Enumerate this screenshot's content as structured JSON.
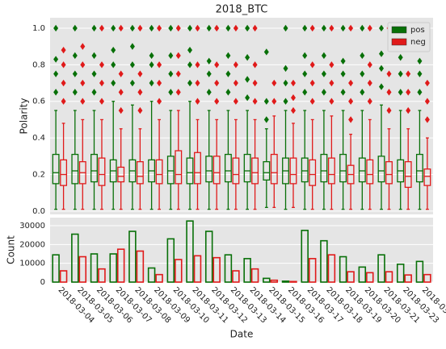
{
  "chart_data": [
    {
      "type": "box",
      "title": "2018_BTC",
      "y_label": "Polarity",
      "ylim": [
        -0.018,
        1.057
      ],
      "yticks": [
        {
          "value": 0,
          "label": "0.0"
        },
        0.2,
        0.4,
        0.6,
        0.8,
        {
          "value": 1,
          "label": "1.0"
        }
      ],
      "grid": true,
      "legend": "upper right",
      "series": [
        {
          "name": "pos",
          "color": "#087008",
          "whislo": [
            0.01,
            0.01,
            0.01,
            0.01,
            0.01,
            0.01,
            0.01,
            0.01,
            0.01,
            0.01,
            0.01,
            0.02,
            0.01,
            0.01,
            0.01,
            0.01,
            0.01,
            0.01,
            0.01,
            0.01
          ],
          "q1": [
            0.15,
            0.15,
            0.16,
            0.16,
            0.16,
            0.16,
            0.15,
            0.15,
            0.16,
            0.16,
            0.16,
            0.17,
            0.15,
            0.16,
            0.16,
            0.16,
            0.16,
            0.16,
            0.16,
            0.16
          ],
          "med": [
            0.21,
            0.22,
            0.22,
            0.22,
            0.22,
            0.22,
            0.22,
            0.21,
            0.22,
            0.22,
            0.22,
            0.21,
            0.22,
            0.22,
            0.22,
            0.22,
            0.22,
            0.22,
            0.22,
            0.22
          ],
          "q3": [
            0.31,
            0.31,
            0.31,
            0.28,
            0.28,
            0.28,
            0.3,
            0.29,
            0.3,
            0.31,
            0.31,
            0.27,
            0.29,
            0.29,
            0.31,
            0.31,
            0.29,
            0.3,
            0.28,
            0.31
          ],
          "whishi": [
            0.55,
            0.55,
            0.55,
            0.6,
            0.58,
            0.6,
            0.55,
            0.6,
            0.55,
            0.55,
            0.55,
            0.45,
            0.55,
            0.55,
            0.55,
            0.55,
            0.55,
            0.58,
            0.55,
            0.55
          ],
          "fliers": [
            [
              0.65,
              0.75,
              0.83,
              1
            ],
            [
              0.65,
              0.75,
              0.85,
              1
            ],
            [
              0.65,
              0.75,
              0.85,
              1
            ],
            [
              0.7,
              0.8,
              0.88,
              1
            ],
            [
              0.7,
              0.8,
              0.9,
              1
            ],
            [
              0.7,
              0.8,
              0.85,
              1
            ],
            [
              0.65,
              0.75,
              0.85,
              1
            ],
            [
              0.7,
              0.8,
              0.88,
              1
            ],
            [
              0.65,
              0.75,
              0.82,
              1
            ],
            [
              0.65,
              0.75,
              0.85,
              1
            ],
            [
              0.62,
              0.72,
              0.84,
              1
            ],
            [
              0.5,
              0.6,
              0.87
            ],
            [
              0.6,
              0.7,
              0.78,
              1
            ],
            [
              0.65,
              0.75,
              0.85,
              1
            ],
            [
              0.65,
              0.75,
              0.85,
              1
            ],
            [
              0.65,
              0.75,
              0.82,
              1
            ],
            [
              0.65,
              0.75,
              0.85,
              1
            ],
            [
              0.68,
              0.78,
              0.86,
              1
            ],
            [
              0.65,
              0.75,
              0.84,
              1
            ],
            [
              0.65,
              0.75,
              0.82,
              1
            ]
          ]
        },
        {
          "name": "neg",
          "color": "#e01a1a",
          "whislo": [
            0.01,
            0.01,
            0.01,
            0.01,
            0.01,
            0.01,
            0.01,
            0.01,
            0.01,
            0.01,
            0.01,
            0.02,
            0.02,
            0.01,
            0.01,
            0.01,
            0.01,
            0.01,
            0.01,
            0.01
          ],
          "q1": [
            0.14,
            0.15,
            0.14,
            0.16,
            0.15,
            0.15,
            0.15,
            0.15,
            0.15,
            0.15,
            0.15,
            0.15,
            0.15,
            0.14,
            0.15,
            0.15,
            0.15,
            0.15,
            0.13,
            0.14
          ],
          "med": [
            0.2,
            0.21,
            0.2,
            0.19,
            0.19,
            0.2,
            0.2,
            0.21,
            0.21,
            0.2,
            0.21,
            0.21,
            0.2,
            0.2,
            0.2,
            0.2,
            0.2,
            0.2,
            0.19,
            0.19
          ],
          "q3": [
            0.28,
            0.27,
            0.29,
            0.24,
            0.27,
            0.28,
            0.33,
            0.32,
            0.3,
            0.29,
            0.29,
            0.31,
            0.29,
            0.28,
            0.29,
            0.25,
            0.28,
            0.27,
            0.27,
            0.23
          ],
          "whishi": [
            0.48,
            0.5,
            0.5,
            0.45,
            0.45,
            0.5,
            0.55,
            0.5,
            0.5,
            0.5,
            0.5,
            0.52,
            0.48,
            0.5,
            0.52,
            0.42,
            0.5,
            0.45,
            0.45,
            0.4
          ],
          "fliers": [
            [
              0.6,
              0.7,
              0.8,
              0.88
            ],
            [
              0.6,
              0.7,
              0.8,
              0.9
            ],
            [
              0.6,
              0.7,
              0.8,
              1
            ],
            [
              0.55,
              0.65,
              0.75,
              1
            ],
            [
              0.55,
              0.65,
              0.75,
              1
            ],
            [
              0.6,
              0.7,
              0.8,
              1
            ],
            [
              0.65,
              0.75,
              0.85,
              1
            ],
            [
              0.6,
              0.7,
              0.8,
              1
            ],
            [
              0.6,
              0.7,
              0.8,
              1
            ],
            [
              0.6,
              0.7,
              0.8,
              1
            ],
            [
              0.6,
              0.7,
              0.8,
              1
            ],
            [
              0.6,
              0.7
            ],
            [
              0.55,
              0.62,
              0.7
            ],
            [
              0.6,
              0.7,
              0.8,
              1
            ],
            [
              0.6,
              0.7,
              0.8,
              1
            ],
            [
              0.5,
              0.6,
              0.7,
              1
            ],
            [
              0.6,
              0.7,
              0.8,
              1
            ],
            [
              0.55,
              0.65,
              0.75,
              1
            ],
            [
              0.55,
              0.65,
              0.75,
              0.9
            ],
            [
              0.5,
              0.6,
              0.7,
              1
            ]
          ]
        }
      ]
    },
    {
      "type": "bar",
      "x_label": "Date",
      "y_label": "Count",
      "categories": [
        "2018-03-04",
        "2018-03-05",
        "2018-03-06",
        "2018-03-07",
        "2018-03-08",
        "2018-03-09",
        "2018-03-10",
        "2018-03-11",
        "2018-03-12",
        "2018-03-13",
        "2018-03-14",
        "2018-03-15",
        "2018-03-16",
        "2018-03-17",
        "2018-03-18",
        "2018-03-19",
        "2018-03-20",
        "2018-03-21",
        "2018-03-23",
        "2018-03-24"
      ],
      "ylim": [
        0,
        34300
      ],
      "yticks": [
        0,
        10000,
        20000,
        30000
      ],
      "grid": true,
      "series": [
        {
          "name": "pos",
          "color": "#087008",
          "values": [
            14500,
            25500,
            15000,
            15000,
            27000,
            7500,
            23000,
            32500,
            27000,
            14500,
            12500,
            2000,
            500,
            27500,
            22000,
            13500,
            8000,
            14500,
            9500,
            11000
          ]
        },
        {
          "name": "neg",
          "color": "#e01a1a",
          "values": [
            6000,
            13500,
            7000,
            17500,
            16500,
            4000,
            12000,
            14000,
            13000,
            6000,
            7000,
            1000,
            300,
            12500,
            14500,
            5500,
            5000,
            5500,
            3800,
            4000
          ]
        }
      ]
    }
  ]
}
